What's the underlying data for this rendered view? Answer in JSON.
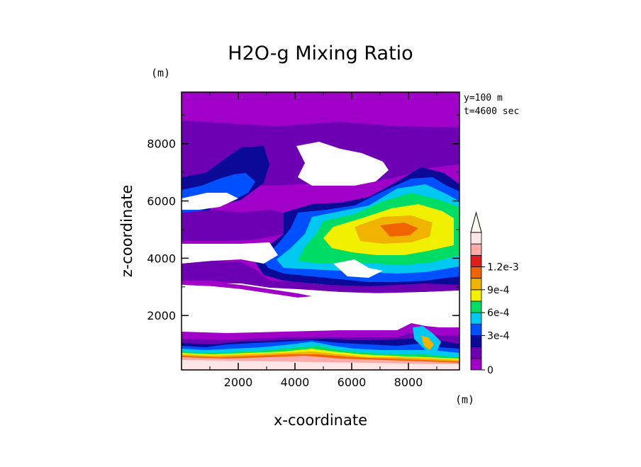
{
  "chart_data": {
    "type": "contour",
    "title": "H2O-g Mixing Ratio",
    "xlabel": "x-coordinate",
    "ylabel": "z-coordinate",
    "x_unit": "(m)",
    "y_unit": "(m)",
    "annotations": [
      "y=100 m",
      "t=4600 sec"
    ],
    "xlim": [
      0,
      9800
    ],
    "ylim": [
      100,
      9800
    ],
    "xticks": [
      2000,
      4000,
      6000,
      8000
    ],
    "yticks": [
      2000,
      4000,
      6000,
      8000
    ],
    "xtick_labels": [
      "2000",
      "4000",
      "6000",
      "8000"
    ],
    "ytick_labels": [
      "2000",
      "4000",
      "6000",
      "8000"
    ],
    "colorbar": {
      "levels": [
        0,
        0.00015,
        0.0003,
        0.00045,
        0.0006,
        0.00075,
        0.0009,
        0.00105,
        0.0012
      ],
      "tick_labels": [
        "0",
        "3e-4",
        "6e-4",
        "9e-4",
        "1.2e-3"
      ],
      "colors": [
        "#a000c8",
        "#6e00b4",
        "#0a0a96",
        "#0050ff",
        "#00c8f0",
        "#00dc64",
        "#f0f000",
        "#f0b400",
        "#f06400",
        "#e11e1e",
        "#ffaaaa",
        "#ffe6e6"
      ],
      "extend": "max"
    },
    "regions": [
      {
        "feature": "upper background",
        "x": [
          0,
          9800
        ],
        "z": [
          8700,
          9800
        ],
        "level_index": 0
      },
      {
        "feature": "upper layer",
        "x": [
          0,
          9800
        ],
        "z": [
          7400,
          8700
        ],
        "level_index": 1
      },
      {
        "feature": "dry pocket (white)",
        "x": [
          4000,
          7100
        ],
        "z": [
          6600,
          8200
        ],
        "level_index": -1
      },
      {
        "feature": "left moist column",
        "x": [
          0,
          2700
        ],
        "z": [
          5000,
          8000
        ],
        "level_index": 3
      },
      {
        "feature": "moist plume",
        "x": [
          4500,
          9000
        ],
        "z": [
          3800,
          7200
        ],
        "level_index": 6
      },
      {
        "feature": "mid dry zone (white)",
        "x": [
          0,
          9800
        ],
        "z": [
          1600,
          3800
        ],
        "level_index": -1
      },
      {
        "feature": "boundary layer",
        "x": [
          0,
          9800
        ],
        "z": [
          100,
          1400
        ],
        "level_index": 8
      }
    ]
  }
}
